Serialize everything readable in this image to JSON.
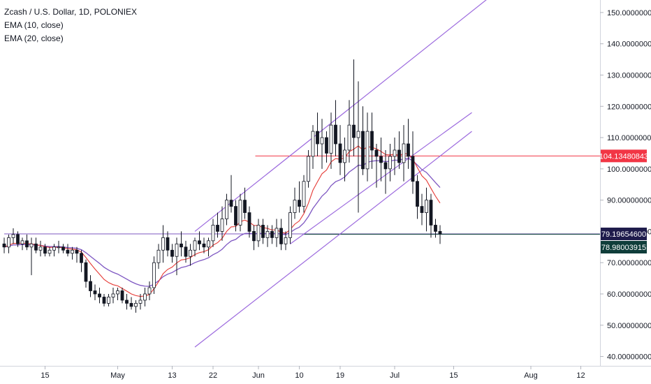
{
  "legend": {
    "title": "Zcash / U.S. Dollar, 1D, POLONIEX",
    "ema1": "EMA (10, close)",
    "ema2": "EMA (20, close)"
  },
  "colors": {
    "up_body": "#ffffff",
    "down_body": "#131722",
    "wick": "#131722",
    "ema_fast": "#e53935",
    "ema_slow": "#7e57c2",
    "channel": "#9c6ade",
    "resistance": "#f23645",
    "support": "#1e4d4a",
    "price_line": "#7e57c2",
    "badge_red": "#f23645",
    "badge_navy": "#1e1b4b",
    "badge_teal": "#0f3d3a"
  },
  "chart_data": {
    "type": "candlestick",
    "title": "Zcash / U.S. Dollar, 1D, POLONIEX",
    "ylim": [
      37,
      154
    ],
    "y_ticks": [
      {
        "value": 40,
        "label": "40.00000000"
      },
      {
        "value": 50,
        "label": "50.00000000"
      },
      {
        "value": 60,
        "label": "60.00000000"
      },
      {
        "value": 70,
        "label": "70.00000000"
      },
      {
        "value": 80,
        "label": "80.00000000"
      },
      {
        "value": 90,
        "label": "90.00000000"
      },
      {
        "value": 100,
        "label": "100.00000000"
      },
      {
        "value": 110,
        "label": "110.00000000"
      },
      {
        "value": 120,
        "label": "120.00000000"
      },
      {
        "value": 130,
        "label": "130.00000000"
      },
      {
        "value": 140,
        "label": "140.00000000"
      },
      {
        "value": 150,
        "label": "150.00000000"
      }
    ],
    "x_range": [
      0,
      127
    ],
    "x_ticks": [
      {
        "index": 9,
        "label": "15"
      },
      {
        "index": 25,
        "label": "May"
      },
      {
        "index": 37,
        "label": "13"
      },
      {
        "index": 46,
        "label": "22"
      },
      {
        "index": 56,
        "label": "Jun"
      },
      {
        "index": 65,
        "label": "10"
      },
      {
        "index": 74,
        "label": "19"
      },
      {
        "index": 86,
        "label": "Jul"
      },
      {
        "index": 99,
        "label": "15"
      },
      {
        "index": 116,
        "label": "Aug"
      },
      {
        "index": 127,
        "label": "12"
      }
    ],
    "candles": [
      [
        76,
        78,
        73,
        75
      ],
      [
        75,
        79,
        73,
        78
      ],
      [
        78,
        81,
        76,
        79
      ],
      [
        79,
        80,
        75,
        76
      ],
      [
        76,
        78,
        74,
        77
      ],
      [
        77,
        79,
        74,
        75
      ],
      [
        75,
        78,
        66,
        76
      ],
      [
        76,
        78,
        73,
        74
      ],
      [
        74,
        77,
        72,
        75
      ],
      [
        75,
        76,
        72,
        73
      ],
      [
        73,
        75,
        72,
        74
      ],
      [
        74,
        76,
        72,
        75
      ],
      [
        75,
        77,
        73,
        75
      ],
      [
        75,
        76,
        73,
        74
      ],
      [
        74,
        76,
        72,
        73
      ],
      [
        73,
        75,
        71,
        74
      ],
      [
        74,
        75,
        70,
        73
      ],
      [
        73,
        74,
        67,
        70
      ],
      [
        70,
        71,
        62,
        64
      ],
      [
        64,
        66,
        59,
        61
      ],
      [
        61,
        63,
        58,
        60
      ],
      [
        60,
        62,
        57,
        59
      ],
      [
        59,
        60,
        56,
        57
      ],
      [
        57,
        60,
        56,
        59
      ],
      [
        59,
        62,
        57,
        60
      ],
      [
        60,
        62,
        58,
        61
      ],
      [
        61,
        62,
        57,
        58
      ],
      [
        58,
        60,
        55,
        57
      ],
      [
        57,
        59,
        55,
        56
      ],
      [
        56,
        58,
        54,
        57
      ],
      [
        57,
        60,
        55,
        58
      ],
      [
        58,
        62,
        56,
        60
      ],
      [
        60,
        64,
        58,
        62
      ],
      [
        62,
        72,
        60,
        70
      ],
      [
        70,
        76,
        68,
        74
      ],
      [
        74,
        82,
        70,
        78
      ],
      [
        78,
        80,
        72,
        74
      ],
      [
        74,
        76,
        70,
        72
      ],
      [
        72,
        78,
        66,
        76
      ],
      [
        76,
        80,
        72,
        75
      ],
      [
        75,
        77,
        70,
        72
      ],
      [
        72,
        76,
        69,
        74
      ],
      [
        74,
        78,
        72,
        77
      ],
      [
        77,
        80,
        74,
        76
      ],
      [
        76,
        78,
        73,
        75
      ],
      [
        75,
        78,
        72,
        77
      ],
      [
        77,
        84,
        75,
        82
      ],
      [
        82,
        86,
        78,
        80
      ],
      [
        80,
        88,
        77,
        84
      ],
      [
        84,
        92,
        82,
        90
      ],
      [
        90,
        98,
        86,
        88
      ],
      [
        88,
        90,
        80,
        82
      ],
      [
        82,
        92,
        80,
        90
      ],
      [
        90,
        94,
        84,
        86
      ],
      [
        86,
        88,
        78,
        80
      ],
      [
        80,
        82,
        74,
        77
      ],
      [
        77,
        84,
        75,
        82
      ],
      [
        82,
        84,
        76,
        78
      ],
      [
        78,
        82,
        75,
        80
      ],
      [
        80,
        82,
        76,
        78
      ],
      [
        78,
        84,
        75,
        81
      ],
      [
        81,
        84,
        74,
        76
      ],
      [
        76,
        80,
        74,
        78
      ],
      [
        78,
        88,
        76,
        86
      ],
      [
        86,
        94,
        84,
        90
      ],
      [
        90,
        96,
        86,
        88
      ],
      [
        88,
        98,
        86,
        96
      ],
      [
        96,
        106,
        94,
        104
      ],
      [
        104,
        114,
        100,
        112
      ],
      [
        112,
        118,
        104,
        108
      ],
      [
        108,
        116,
        100,
        110
      ],
      [
        110,
        112,
        102,
        105
      ],
      [
        105,
        118,
        100,
        114
      ],
      [
        114,
        122,
        104,
        108
      ],
      [
        108,
        114,
        98,
        102
      ],
      [
        102,
        110,
        96,
        106
      ],
      [
        106,
        122,
        102,
        114
      ],
      [
        114,
        135,
        104,
        110
      ],
      [
        110,
        128,
        86,
        112
      ],
      [
        112,
        120,
        98,
        100
      ],
      [
        100,
        118,
        96,
        112
      ],
      [
        112,
        118,
        100,
        106
      ],
      [
        106,
        108,
        94,
        104
      ],
      [
        104,
        110,
        96,
        102
      ],
      [
        102,
        106,
        92,
        100
      ],
      [
        100,
        108,
        96,
        104
      ],
      [
        104,
        110,
        98,
        106
      ],
      [
        106,
        112,
        100,
        102
      ],
      [
        102,
        114,
        96,
        108
      ],
      [
        108,
        116,
        100,
        104
      ],
      [
        104,
        112,
        92,
        96
      ],
      [
        96,
        98,
        84,
        88
      ],
      [
        88,
        92,
        82,
        86
      ],
      [
        86,
        94,
        80,
        90
      ],
      [
        90,
        92,
        78,
        82
      ],
      [
        82,
        84,
        78,
        80
      ],
      [
        80,
        82,
        76,
        79.2
      ]
    ],
    "ema_fast_endpoint": [
      [
        88,
        100
      ],
      [
        92,
        101
      ],
      [
        96,
        98
      ],
      [
        99,
        94.5
      ],
      [
        101,
        91
      ],
      [
        103,
        89
      ]
    ],
    "channel_upper": [
      [
        42,
        80
      ],
      [
        107,
        155
      ]
    ],
    "channel_middle": [
      [
        63,
        76
      ],
      [
        103,
        118
      ]
    ],
    "channel_lower": [
      [
        42,
        43
      ],
      [
        103,
        112
      ]
    ],
    "resistance_line": {
      "from_index": 55,
      "value": 104.13480843
    },
    "support_line": {
      "from_index": 0,
      "value": 79.196546
    },
    "price_labels": [
      {
        "value": 104.13480843,
        "label": "104.13480843"
      },
      {
        "value": 79.196546,
        "label": "79.19654600"
      },
      {
        "value": 78.98003915,
        "label": "78.98003915"
      }
    ]
  }
}
